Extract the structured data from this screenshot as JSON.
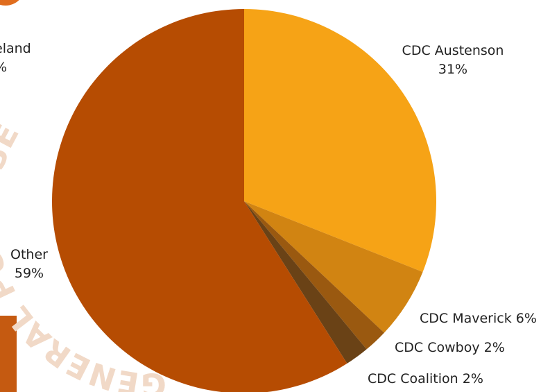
{
  "chart_data": {
    "type": "pie",
    "slices": [
      {
        "label": "CDC Austenson",
        "value": 31,
        "value_label": "31%",
        "color": "#f6a316"
      },
      {
        "label": "CDC Maverick",
        "value": 6,
        "value_label": "6%",
        "color": "#d18412"
      },
      {
        "label": "CDC Cowboy",
        "value": 2,
        "value_label": "2%",
        "color": "#9a5910"
      },
      {
        "label": "CDC Coalition",
        "value": 2,
        "value_label": "2%",
        "color": "#6a4216"
      },
      {
        "label": "Other",
        "value": 59,
        "value_label": "59%",
        "color": "#b64c02"
      }
    ],
    "partial_label": {
      "line1": "eland",
      "line2": "%"
    },
    "overlay_text": "GENERAL PURPOSE"
  },
  "accent_colors": {
    "orange_block": "#c55a11",
    "top_circle": "#e06d1e"
  }
}
